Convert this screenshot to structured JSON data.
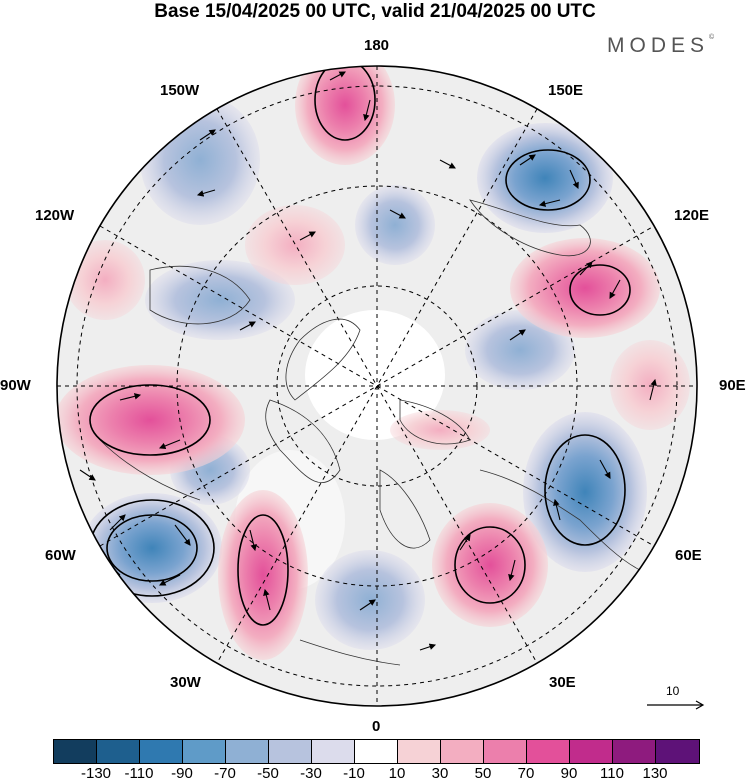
{
  "title": "Base 15/04/2025 00 UTC, valid 21/04/2025 00 UTC",
  "brand": "MODES",
  "brand_mark": "©",
  "map": {
    "projection": "north-polar-stereographic",
    "longitude_labels": {
      "top": "180",
      "top_right": "150E",
      "right_upper": "120E",
      "right": "90E",
      "right_lower": "60E",
      "bottom_right": "30E",
      "bottom": "0",
      "bottom_left": "30W",
      "left_lower": "60W",
      "left": "90W",
      "left_upper": "120W",
      "top_left": "150W"
    },
    "reference_vector": "10",
    "field": "anomaly shading with wind vectors",
    "colors": {
      "negative": "#3d7fb5",
      "positive": "#e0508c",
      "background": "#ffffff"
    }
  },
  "colorbar": {
    "tick_labels": [
      "-130",
      "-110",
      "-90",
      "-70",
      "-50",
      "-30",
      "-10",
      "10",
      "30",
      "50",
      "70",
      "90",
      "110",
      "130"
    ],
    "colors": [
      "#123d5e",
      "#1e5f8e",
      "#2f79b0",
      "#5f9bc8",
      "#8fb0d4",
      "#b7c3de",
      "#dcdcec",
      "#ffffff",
      "#f6d2d6",
      "#f3aec1",
      "#ec7fac",
      "#e3509a",
      "#c12c8c",
      "#8e1b7e",
      "#5e1278"
    ]
  }
}
